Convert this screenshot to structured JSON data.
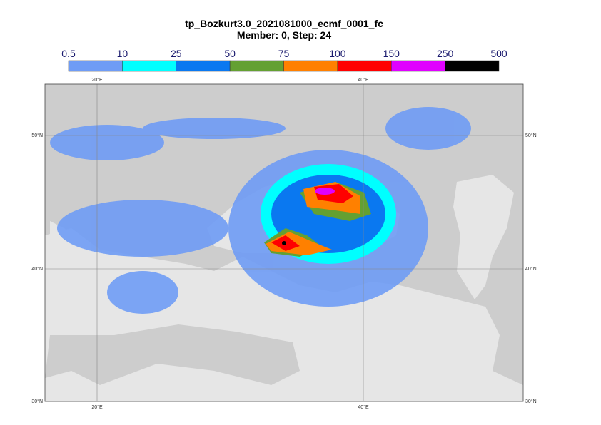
{
  "header": {
    "title": "tp_Bozkurt3.0_2021081000_ecmf_0001_fc",
    "subtitle": "Member: 0, Step: 24"
  },
  "colorbar": {
    "labels": [
      "0.5",
      "10",
      "25",
      "50",
      "75",
      "100",
      "150",
      "250",
      "500"
    ],
    "colors": [
      "#6f9cf5",
      "#00ffff",
      "#0a78f0",
      "#64a032",
      "#ff8000",
      "#ff0000",
      "#e000ff",
      "#000000"
    ]
  },
  "grid": {
    "lat_labels": [
      "50°N",
      "40°N",
      "30°N"
    ],
    "lon_labels": [
      "20°E",
      "40°E"
    ]
  }
}
